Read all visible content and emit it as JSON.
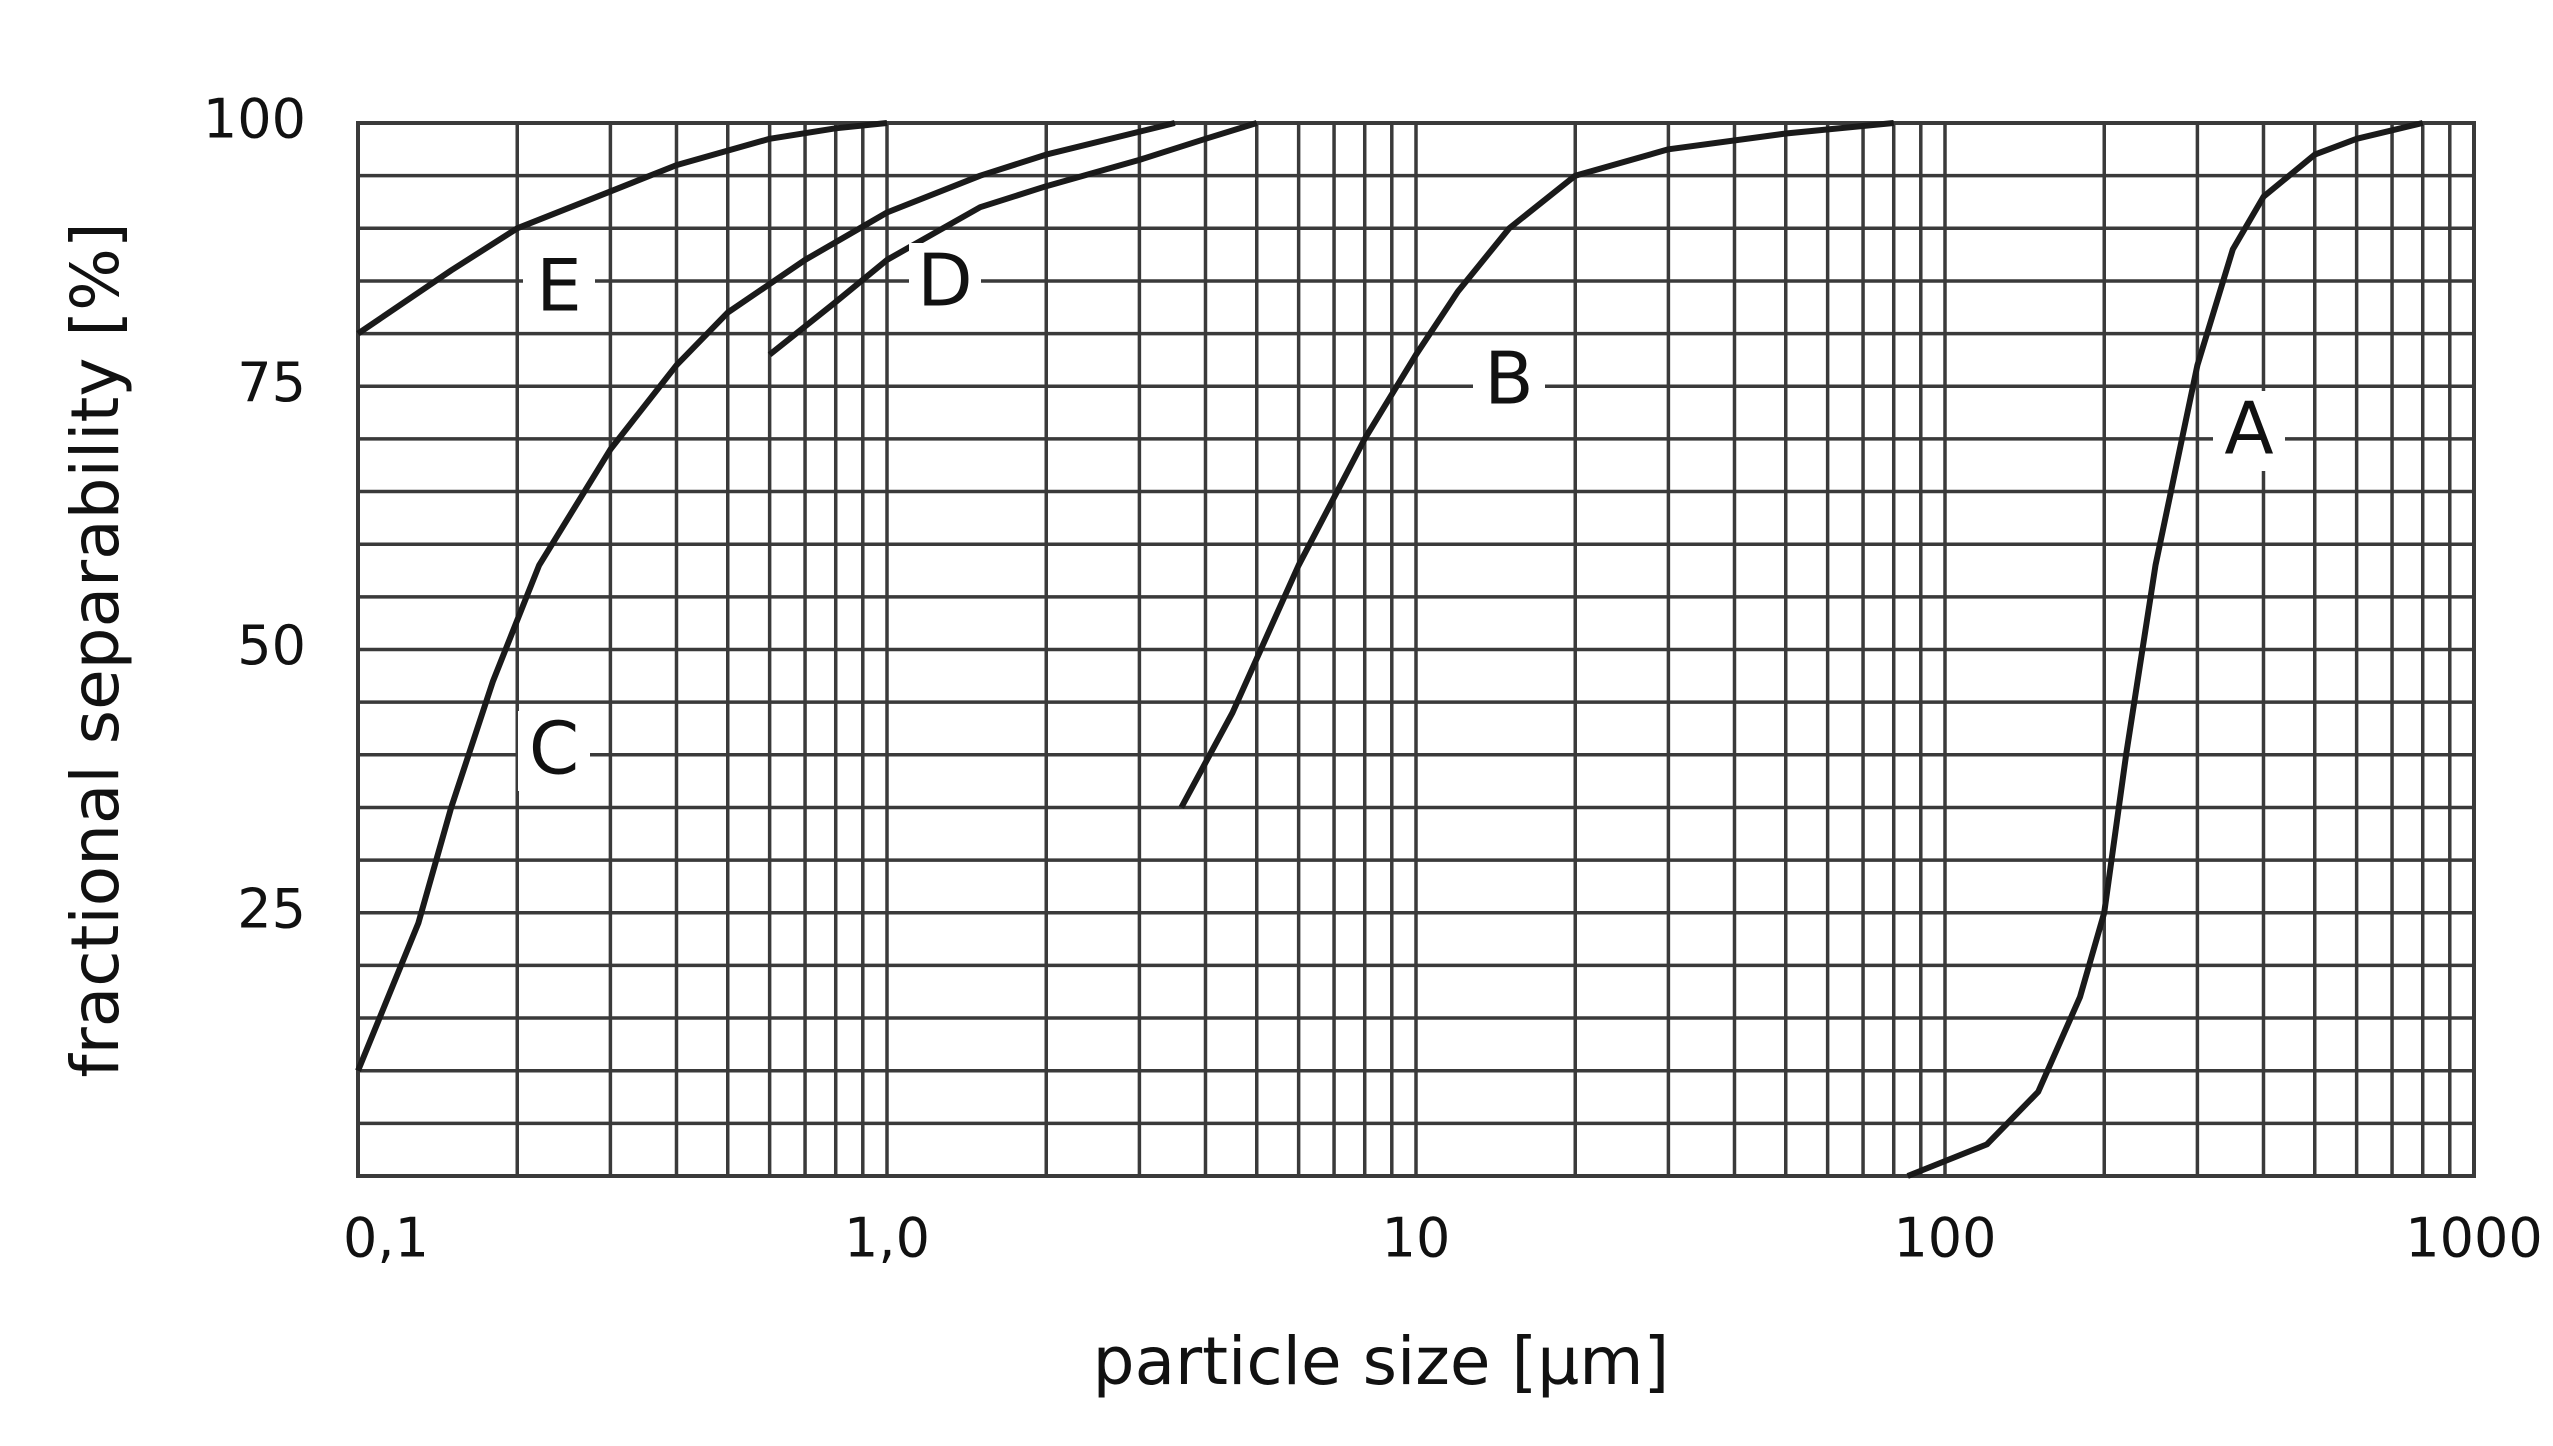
{
  "chart_data": {
    "type": "line",
    "x_label": "particle size [µm]",
    "y_label": "fractional separability [%]",
    "x_log": true,
    "grid": true,
    "xlim": [
      0.1,
      1000
    ],
    "ylim": [
      0,
      100
    ],
    "xticks": [
      {
        "value": 0.1,
        "label": "0,1"
      },
      {
        "value": 1,
        "label": "1,0"
      },
      10,
      100,
      1000
    ],
    "xminorticks": [
      0.2,
      0.3,
      0.4,
      0.5,
      0.6,
      0.7,
      0.8,
      0.9,
      2,
      3,
      4,
      5,
      6,
      7,
      8,
      9,
      20,
      30,
      40,
      50,
      60,
      70,
      80,
      90,
      200,
      300,
      400,
      500,
      600,
      700,
      800,
      900
    ],
    "yticks": [
      25,
      50,
      75,
      100
    ],
    "yminorticks": [
      5,
      10,
      15,
      20,
      30,
      35,
      40,
      45,
      55,
      60,
      65,
      70,
      80,
      85,
      90,
      95
    ],
    "series": [
      {
        "name": "A",
        "color": "#1a1a1a",
        "x": [
          85,
          120,
          150,
          180,
          200,
          220,
          250,
          300,
          350,
          400,
          500,
          600,
          800
        ],
        "values": [
          0,
          3,
          8,
          17,
          25,
          40,
          58,
          77,
          88,
          93,
          97,
          98.5,
          100
        ]
      },
      {
        "name": "B",
        "color": "#1a1a1a",
        "x": [
          3.6,
          4.5,
          6,
          8,
          10,
          12,
          15,
          20,
          30,
          50,
          80
        ],
        "values": [
          35,
          44,
          58,
          70,
          78,
          84,
          90,
          95,
          97.5,
          99,
          100
        ]
      },
      {
        "name": "C",
        "color": "#1a1a1a",
        "x": [
          0.1,
          0.13,
          0.15,
          0.18,
          0.22,
          0.3,
          0.4,
          0.5,
          0.7,
          1,
          1.5,
          2,
          3.5
        ],
        "values": [
          10,
          24,
          35,
          47,
          58,
          69,
          77,
          82,
          87,
          91.5,
          95,
          97,
          100
        ]
      },
      {
        "name": "D",
        "color": "#1a1a1a",
        "x": [
          0.6,
          0.8,
          1,
          1.5,
          2,
          3,
          4,
          5
        ],
        "values": [
          78,
          83,
          87,
          92,
          94,
          96.5,
          98.5,
          100
        ]
      },
      {
        "name": "E",
        "color": "#1a1a1a",
        "x": [
          0.1,
          0.15,
          0.2,
          0.3,
          0.4,
          0.6,
          0.8,
          1
        ],
        "values": [
          80,
          86,
          90,
          93.5,
          96,
          98.5,
          99.5,
          100
        ]
      }
    ]
  }
}
